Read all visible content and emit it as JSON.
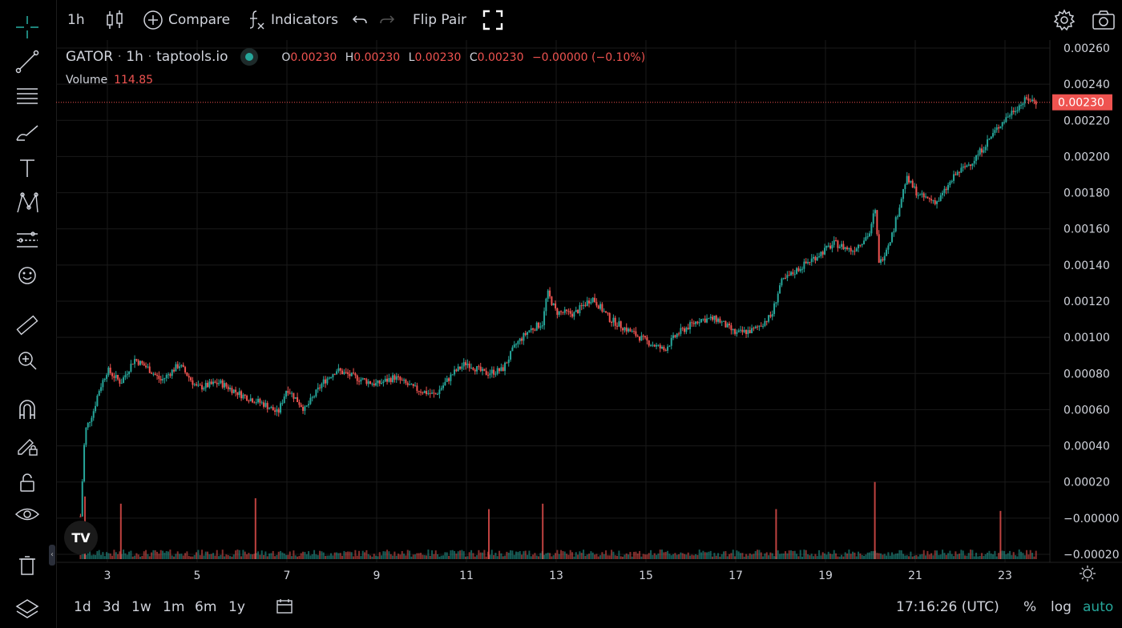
{
  "toolbar": {
    "interval": "1h",
    "compare_label": "Compare",
    "indicators_label": "Indicators",
    "flip_pair_label": "Flip Pair"
  },
  "legend": {
    "symbol": "GATOR",
    "interval": "1h",
    "source": "taptools.io",
    "ohlc": {
      "o_label": "O",
      "o": "0.00230",
      "h_label": "H",
      "h": "0.00230",
      "l_label": "L",
      "l": "0.00230",
      "c_label": "C",
      "c": "0.00230",
      "change": "−0.00000 (−0.10%)"
    },
    "volume_label": "Volume",
    "volume_value": "114.85"
  },
  "colors": {
    "up": "#26a69a",
    "down": "#ef5350",
    "grid": "#1a1a1a",
    "text": "#d1d4dc",
    "price_tag": "#ef5350"
  },
  "bottom_bar": {
    "ranges": [
      "1d",
      "3d",
      "1w",
      "1m",
      "6m",
      "1y"
    ],
    "clock": "17:16:26 (UTC)",
    "percent_label": "%",
    "log_label": "log",
    "auto_label": "auto"
  },
  "logo_text": "TV",
  "chart_data": {
    "type": "candlestick",
    "x_ticks": [
      "3",
      "5",
      "7",
      "9",
      "11",
      "13",
      "15",
      "17",
      "19",
      "21",
      "23"
    ],
    "y_ticks": [
      "0.00260",
      "0.00240",
      "0.00220",
      "0.00200",
      "0.00180",
      "0.00160",
      "0.00140",
      "0.00120",
      "0.00100",
      "0.00080",
      "0.00060",
      "0.00040",
      "0.00020",
      "−0.00000",
      "−0.00020"
    ],
    "y_range": [
      -0.0002,
      0.0026
    ],
    "last_price": "0.00230",
    "close_path": [
      [
        2.4,
        1e-05
      ],
      [
        2.5,
        0.00048
      ],
      [
        2.7,
        0.0006
      ],
      [
        2.8,
        0.0007
      ],
      [
        3.0,
        0.00082
      ],
      [
        3.3,
        0.00075
      ],
      [
        3.6,
        0.00088
      ],
      [
        3.9,
        0.00083
      ],
      [
        4.2,
        0.00076
      ],
      [
        4.6,
        0.00085
      ],
      [
        5.0,
        0.00072
      ],
      [
        5.5,
        0.00075
      ],
      [
        6.0,
        0.00068
      ],
      [
        6.5,
        0.00063
      ],
      [
        6.8,
        0.00058
      ],
      [
        7.0,
        0.00072
      ],
      [
        7.4,
        0.0006
      ],
      [
        7.8,
        0.00075
      ],
      [
        8.1,
        0.00082
      ],
      [
        8.5,
        0.00078
      ],
      [
        9.0,
        0.00074
      ],
      [
        9.4,
        0.00078
      ],
      [
        9.8,
        0.00072
      ],
      [
        10.3,
        0.00068
      ],
      [
        10.7,
        0.0008
      ],
      [
        11.0,
        0.00086
      ],
      [
        11.4,
        0.0008
      ],
      [
        11.8,
        0.00082
      ],
      [
        12.1,
        0.00096
      ],
      [
        12.4,
        0.00104
      ],
      [
        12.7,
        0.00108
      ],
      [
        12.8,
        0.00125
      ],
      [
        13.0,
        0.00114
      ],
      [
        13.4,
        0.00113
      ],
      [
        13.8,
        0.00122
      ],
      [
        14.2,
        0.0011
      ],
      [
        14.6,
        0.00104
      ],
      [
        15.0,
        0.00098
      ],
      [
        15.4,
        0.00093
      ],
      [
        15.7,
        0.00102
      ],
      [
        16.2,
        0.0011
      ],
      [
        16.6,
        0.0011
      ],
      [
        17.0,
        0.00102
      ],
      [
        17.4,
        0.00104
      ],
      [
        17.8,
        0.00112
      ],
      [
        18.0,
        0.0013
      ],
      [
        18.4,
        0.00138
      ],
      [
        18.8,
        0.00145
      ],
      [
        19.2,
        0.00152
      ],
      [
        19.6,
        0.00148
      ],
      [
        20.0,
        0.00158
      ],
      [
        20.1,
        0.00172
      ],
      [
        20.2,
        0.0014
      ],
      [
        20.5,
        0.00158
      ],
      [
        20.8,
        0.00188
      ],
      [
        21.1,
        0.00178
      ],
      [
        21.5,
        0.00175
      ],
      [
        21.9,
        0.0019
      ],
      [
        22.3,
        0.00198
      ],
      [
        22.6,
        0.00208
      ],
      [
        22.9,
        0.00218
      ],
      [
        23.2,
        0.00226
      ],
      [
        23.5,
        0.00232
      ],
      [
        23.7,
        0.0023
      ]
    ],
    "volume_spikes": [
      [
        2.5,
        0.00012
      ],
      [
        3.3,
        8e-05
      ],
      [
        6.3,
        0.00011
      ],
      [
        11.5,
        5e-05
      ],
      [
        12.7,
        8e-05
      ],
      [
        17.9,
        5e-05
      ],
      [
        20.1,
        0.0002
      ],
      [
        22.9,
        4e-05
      ]
    ]
  }
}
